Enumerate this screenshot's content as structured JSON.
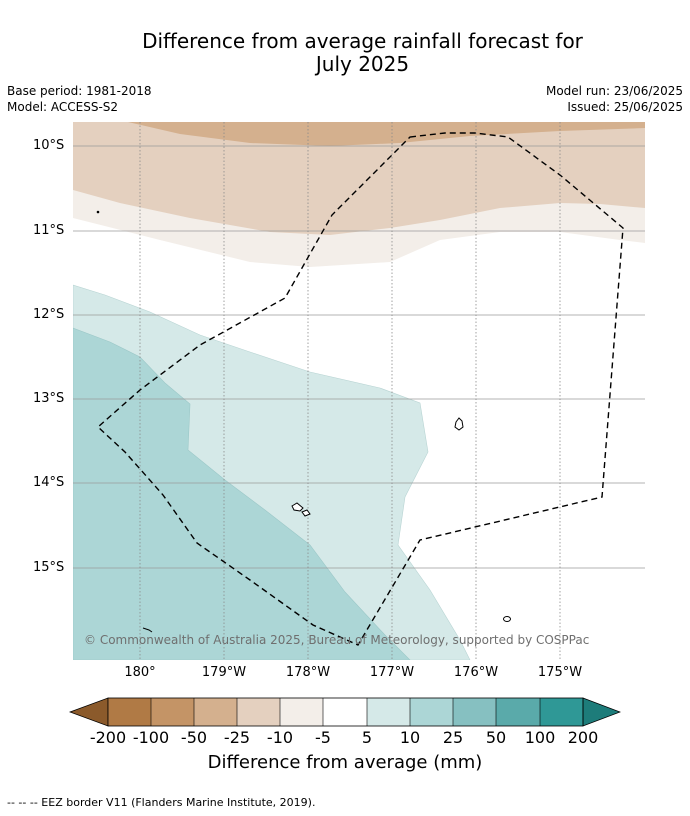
{
  "title_line1": "Difference from average rainfall forecast for",
  "title_line2": "July 2025",
  "meta": {
    "base_period": "Base period: 1981-2018",
    "model": "Model: ACCESS-S2",
    "model_run": "Model run: 23/06/2025",
    "issued": "Issued: 25/06/2025"
  },
  "lat_labels": [
    "10°S",
    "11°S",
    "12°S",
    "13°S",
    "14°S",
    "15°S"
  ],
  "lon_labels": [
    "180°",
    "179°W",
    "178°W",
    "177°W",
    "176°W",
    "175°W"
  ],
  "copyright": "© Commonwealth of Australia 2025, Bureau of Meteorology, supported by COSPPac",
  "colorbar": {
    "title": "Difference from average (mm)",
    "ticks": [
      "-200",
      "-100",
      "-50",
      "-25",
      "-10",
      "-5",
      "5",
      "10",
      "25",
      "50",
      "100",
      "200"
    ],
    "colors": [
      "#8b5a2b",
      "#b07a45",
      "#c49466",
      "#d4b08e",
      "#e4d0bf",
      "#f3eee9",
      "#ffffff",
      "#d5e9e8",
      "#acd6d6",
      "#86c0c1",
      "#5aaaaa",
      "#2f9896",
      "#1d7c7a"
    ]
  },
  "footer": "--  --  -- EEZ border V11 (Flanders Marine Institute, 2019)."
}
